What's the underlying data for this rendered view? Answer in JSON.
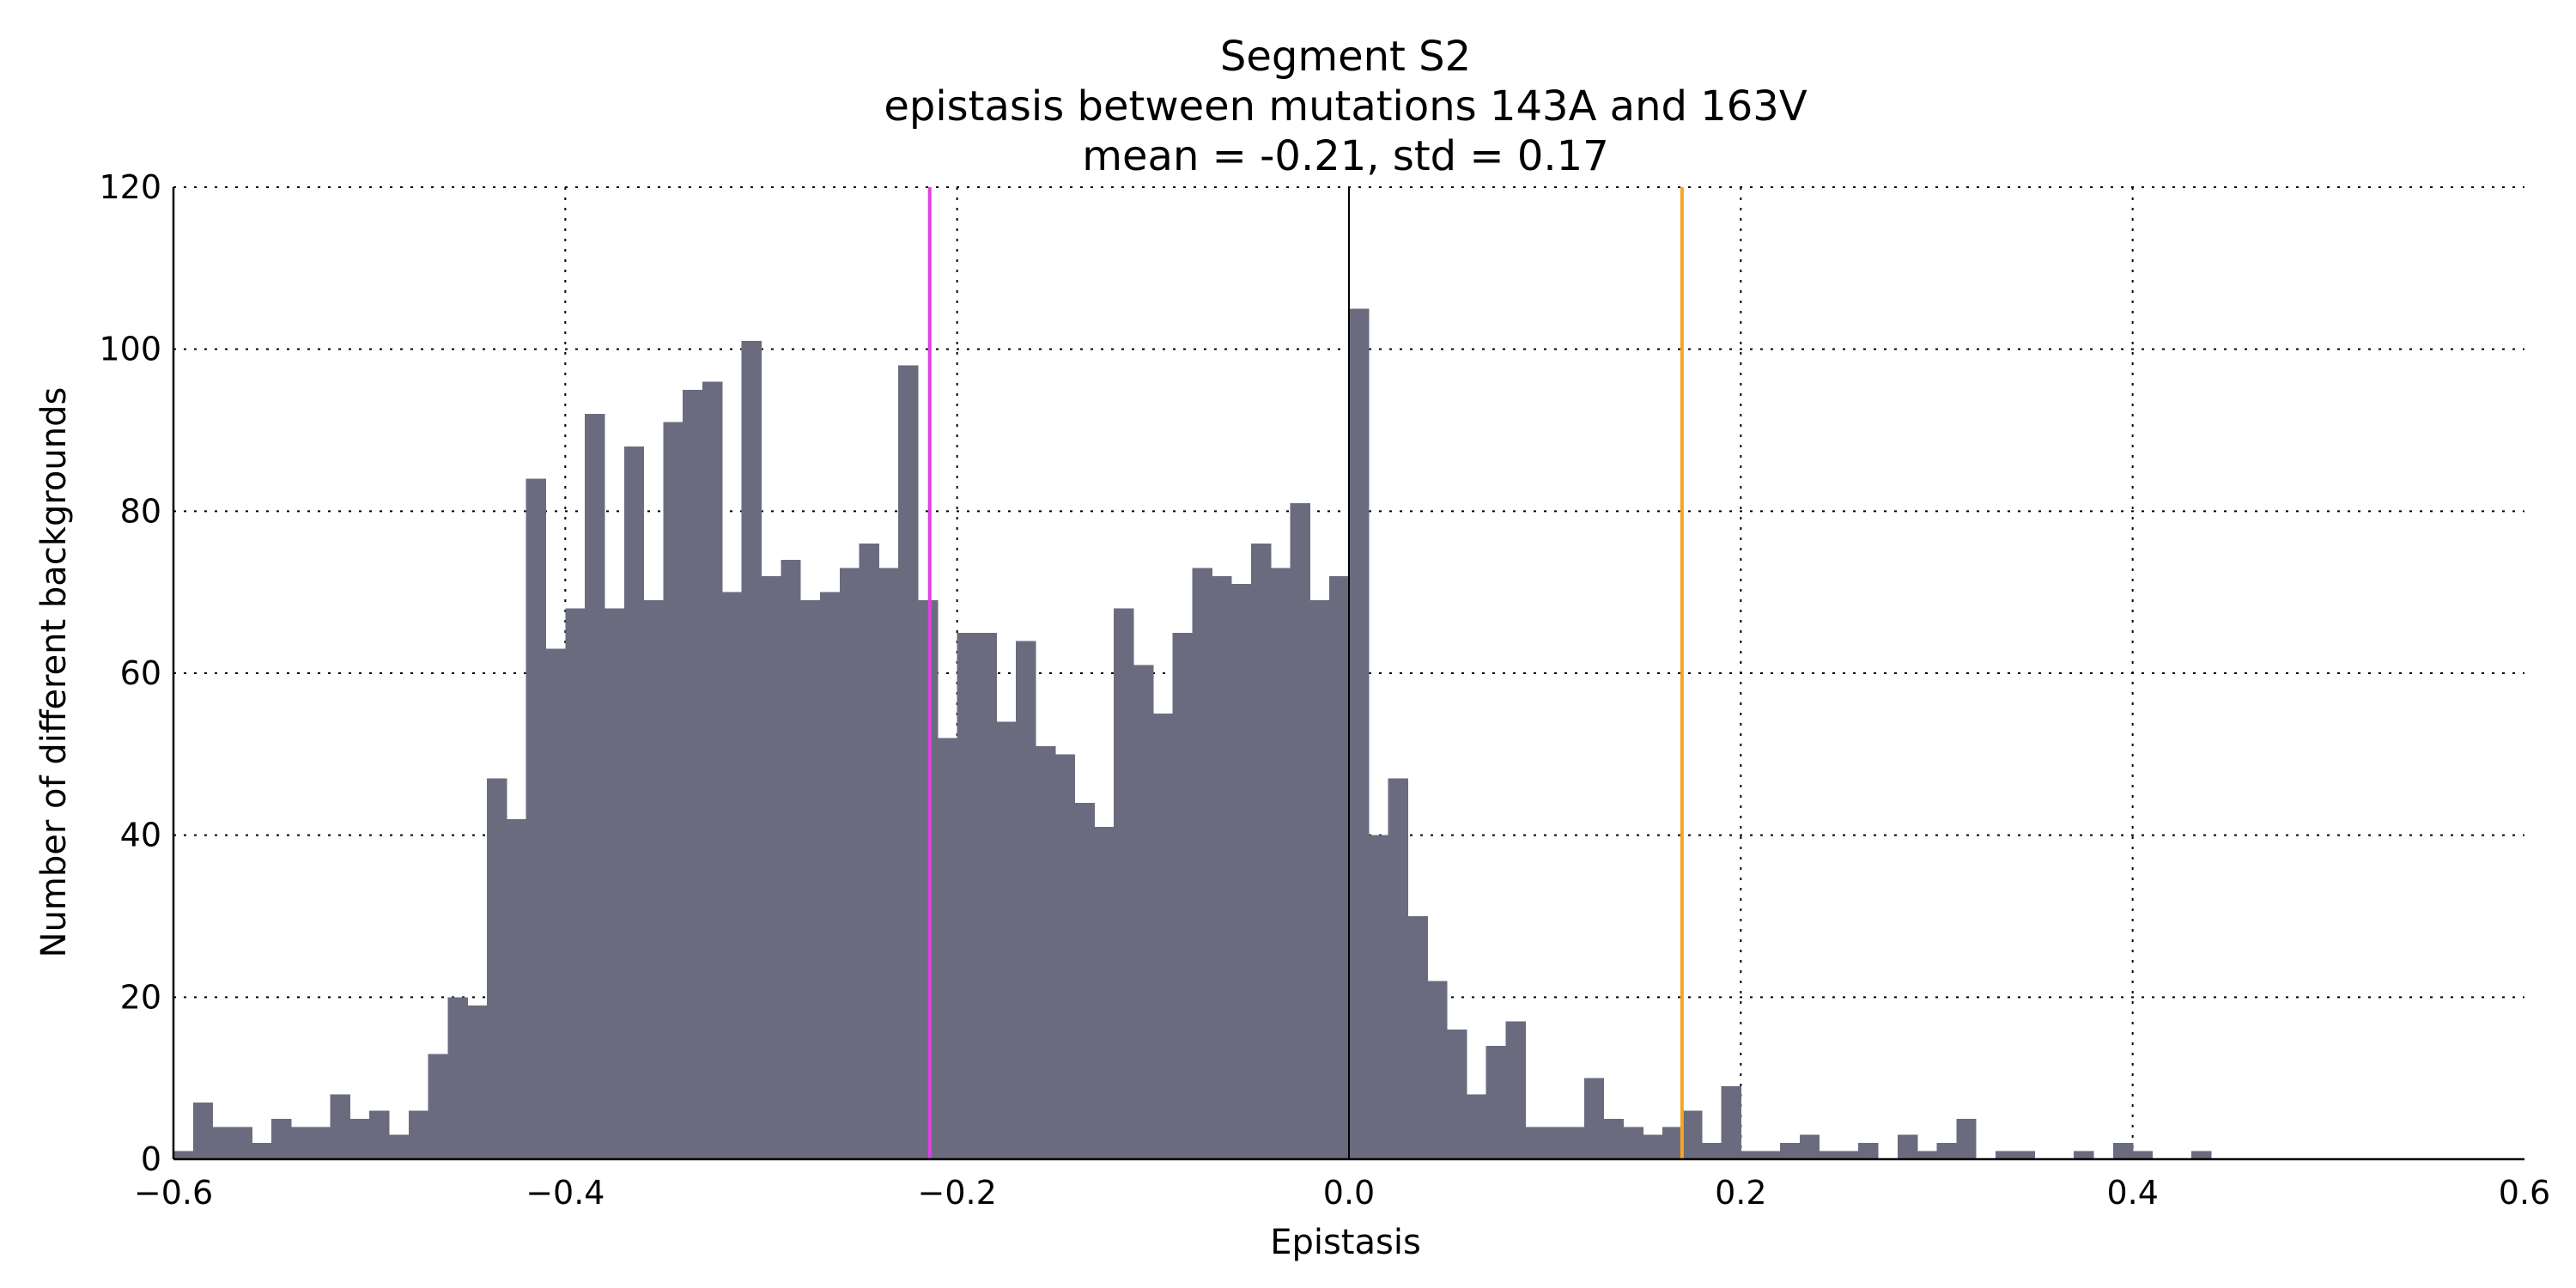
{
  "chart_data": {
    "type": "bar",
    "title_lines": [
      "Segment S2",
      "epistasis between mutations 143A and 163V",
      "mean = -0.21, std = 0.17"
    ],
    "xlabel": "Epistasis",
    "ylabel": "Number of different backgrounds",
    "xlim": [
      -0.6,
      0.6
    ],
    "ylim": [
      0,
      120
    ],
    "x_ticks": [
      -0.6,
      -0.4,
      -0.2,
      0.0,
      0.2,
      0.4,
      0.6
    ],
    "x_tick_labels": [
      "−0.6",
      "−0.4",
      "−0.2",
      "0.0",
      "0.2",
      "0.4",
      "0.6"
    ],
    "y_ticks": [
      0,
      20,
      40,
      60,
      80,
      100,
      120
    ],
    "y_tick_labels": [
      "0",
      "20",
      "40",
      "60",
      "80",
      "100",
      "120"
    ],
    "grid": true,
    "bar_color": "#6b6b80",
    "bin_start": -0.6,
    "bin_width": 0.01,
    "values": [
      1,
      7,
      4,
      4,
      2,
      5,
      4,
      4,
      8,
      5,
      6,
      3,
      6,
      13,
      20,
      19,
      47,
      42,
      84,
      63,
      68,
      92,
      68,
      88,
      69,
      91,
      95,
      96,
      70,
      101,
      72,
      74,
      69,
      70,
      73,
      76,
      73,
      98,
      69,
      52,
      65,
      65,
      54,
      64,
      51,
      50,
      44,
      41,
      68,
      61,
      55,
      65,
      73,
      72,
      71,
      76,
      73,
      81,
      69,
      72,
      105,
      40,
      47,
      30,
      22,
      16,
      8,
      14,
      17,
      4,
      4,
      4,
      10,
      5,
      4,
      3,
      4,
      6,
      2,
      9,
      1,
      1,
      2,
      3,
      1,
      1,
      2,
      0,
      3,
      1,
      2,
      5,
      0,
      1,
      1,
      0,
      0,
      1,
      0,
      2,
      1,
      0,
      0,
      1,
      0,
      0,
      0,
      0,
      0,
      0,
      0,
      0,
      0,
      0,
      0,
      0,
      0,
      0,
      0,
      0
    ],
    "vertical_lines": [
      {
        "x": -0.214,
        "color": "#e040e0"
      },
      {
        "x": 0.17,
        "color": "#f5a623"
      },
      {
        "x": 0.0,
        "color": "#000000"
      }
    ]
  }
}
